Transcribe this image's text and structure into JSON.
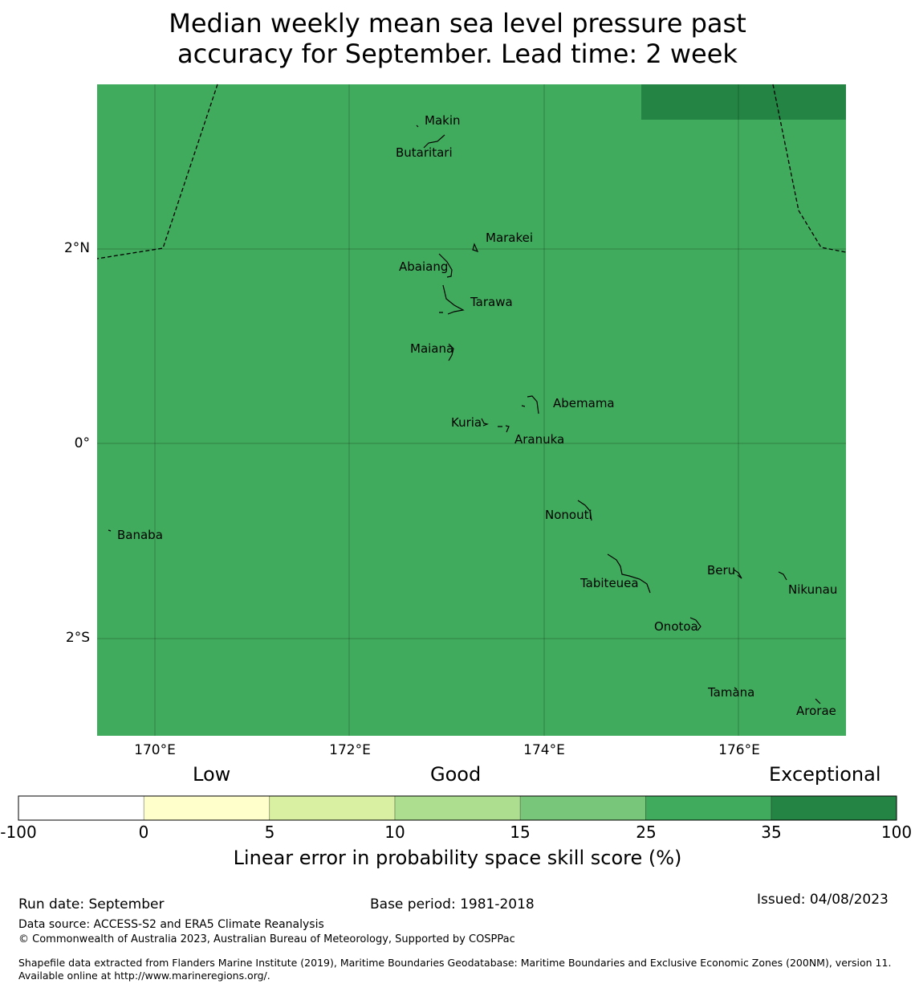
{
  "title": {
    "line1": "Median weekly mean sea level pressure past",
    "line2": "accuracy for September. Lead time: 2 week"
  },
  "map": {
    "background_color": "#41ab5d",
    "highlight_color": "#238443",
    "grid": true,
    "lat_labels": [
      "2°N",
      "0°",
      "2°S"
    ],
    "lon_labels": [
      "170°E",
      "172°E",
      "174°E",
      "176°E"
    ],
    "islands": [
      {
        "name": "Makin"
      },
      {
        "name": "Butaritari"
      },
      {
        "name": "Marakei"
      },
      {
        "name": "Abaiang"
      },
      {
        "name": "Tarawa"
      },
      {
        "name": "Maiana"
      },
      {
        "name": "Abemama"
      },
      {
        "name": "Kuria"
      },
      {
        "name": "Aranuka"
      },
      {
        "name": "Nonouti"
      },
      {
        "name": "Banaba"
      },
      {
        "name": "Tabiteuea"
      },
      {
        "name": "Beru"
      },
      {
        "name": "Nikunau"
      },
      {
        "name": "Onotoa"
      },
      {
        "name": "Tamana"
      },
      {
        "name": "Arorae"
      }
    ]
  },
  "colorbar": {
    "category_labels": {
      "low": "Low",
      "good": "Good",
      "exceptional": "Exceptional"
    },
    "bins": [
      {
        "from": -100,
        "to": 0,
        "color": "#ffffff"
      },
      {
        "from": 0,
        "to": 5,
        "color": "#ffffcc"
      },
      {
        "from": 5,
        "to": 10,
        "color": "#d9f0a3"
      },
      {
        "from": 10,
        "to": 15,
        "color": "#addd8e"
      },
      {
        "from": 15,
        "to": 25,
        "color": "#78c679"
      },
      {
        "from": 25,
        "to": 35,
        "color": "#41ab5d"
      },
      {
        "from": 35,
        "to": 100,
        "color": "#238443"
      }
    ],
    "ticks": [
      "-100",
      "0",
      "5",
      "10",
      "15",
      "25",
      "35",
      "100"
    ],
    "title": "Linear error in probability space skill score (%)"
  },
  "footer": {
    "run_date": "Run date: September",
    "base_period": "Base period: 1981-2018",
    "issued": "Issued: 04/08/2023",
    "data_source": "Data source: ACCESS-S2 and ERA5 Climate Reanalysis",
    "copyright": "© Commonwealth of Australia 2023, Australian Bureau of Meteorology, Supported by COSPPac",
    "shapefile": "Shapefile data extracted from Flanders Marine Institute (2019), Maritime Boundaries Geodatabase: Maritime Boundaries and Exclusive Economic Zones (200NM), version 11. Available online at http://www.marineregions.org/."
  }
}
